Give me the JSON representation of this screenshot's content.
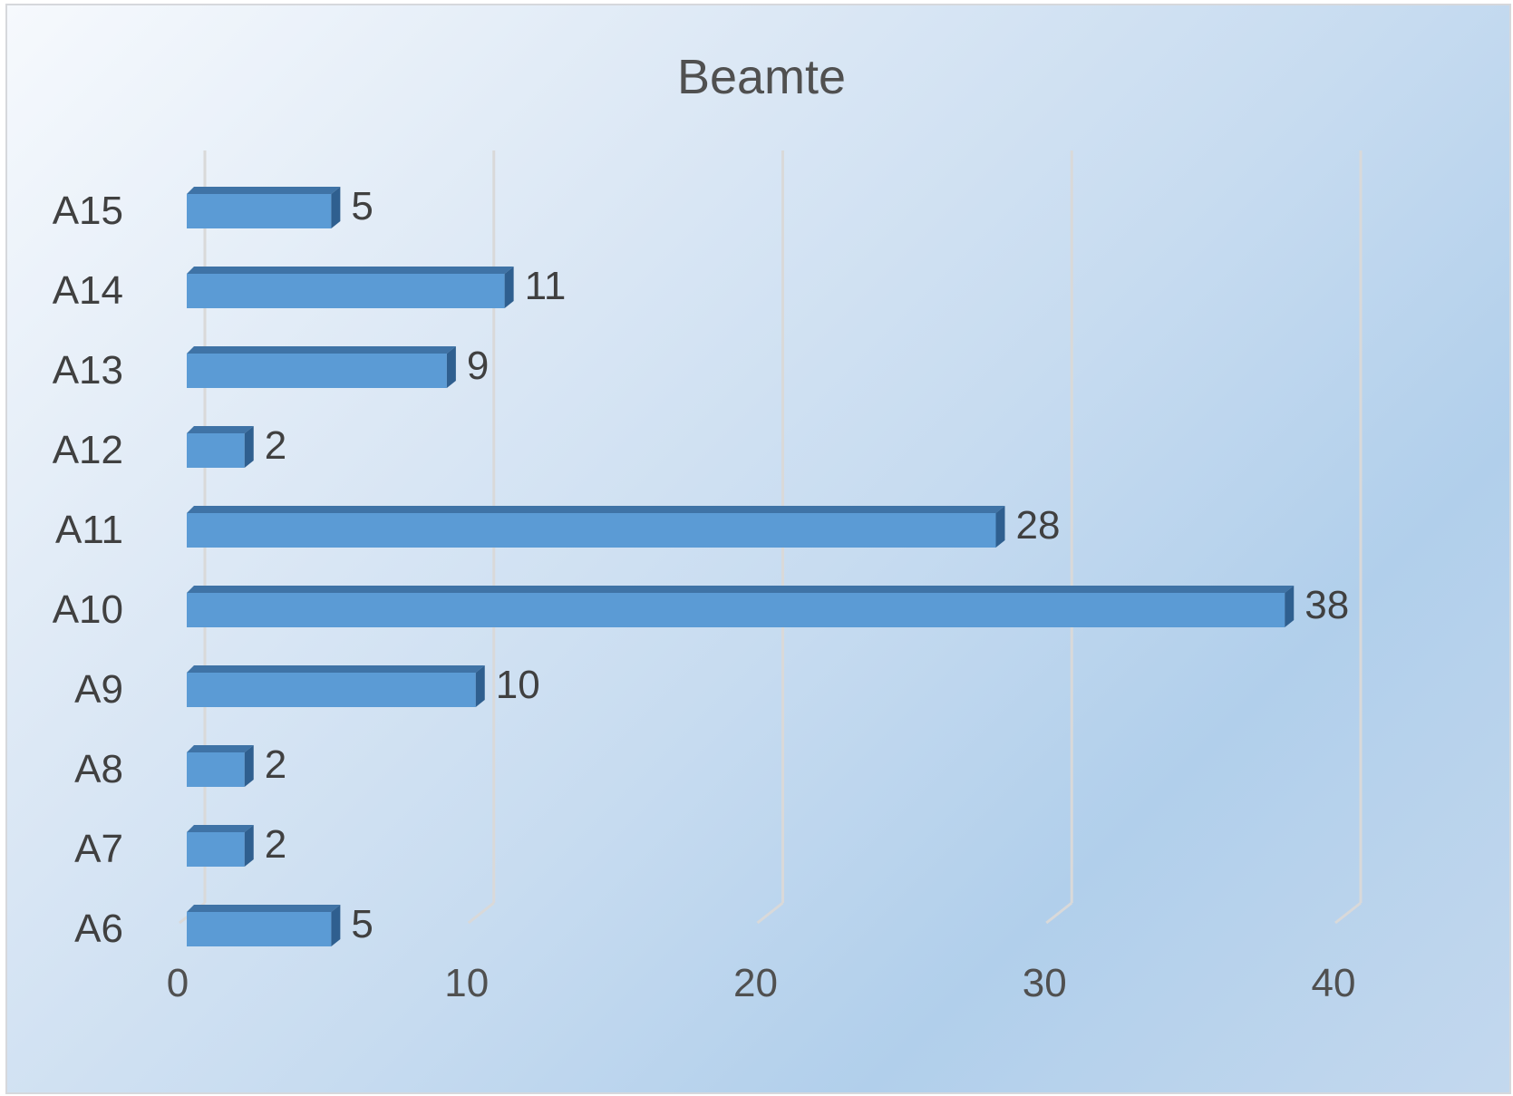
{
  "chart_data": {
    "type": "bar",
    "orientation": "horizontal",
    "style": "3d",
    "title": "Beamte",
    "categories": [
      "A6",
      "A7",
      "A8",
      "A9",
      "A10",
      "A11",
      "A12",
      "A13",
      "A14",
      "A15"
    ],
    "values": [
      5,
      2,
      2,
      10,
      38,
      28,
      2,
      9,
      11,
      5
    ],
    "xlim": [
      0,
      40
    ],
    "xticks": [
      0,
      10,
      20,
      30,
      40
    ],
    "grid": true,
    "data_labels": true,
    "bar_color": "#5b9bd5"
  }
}
